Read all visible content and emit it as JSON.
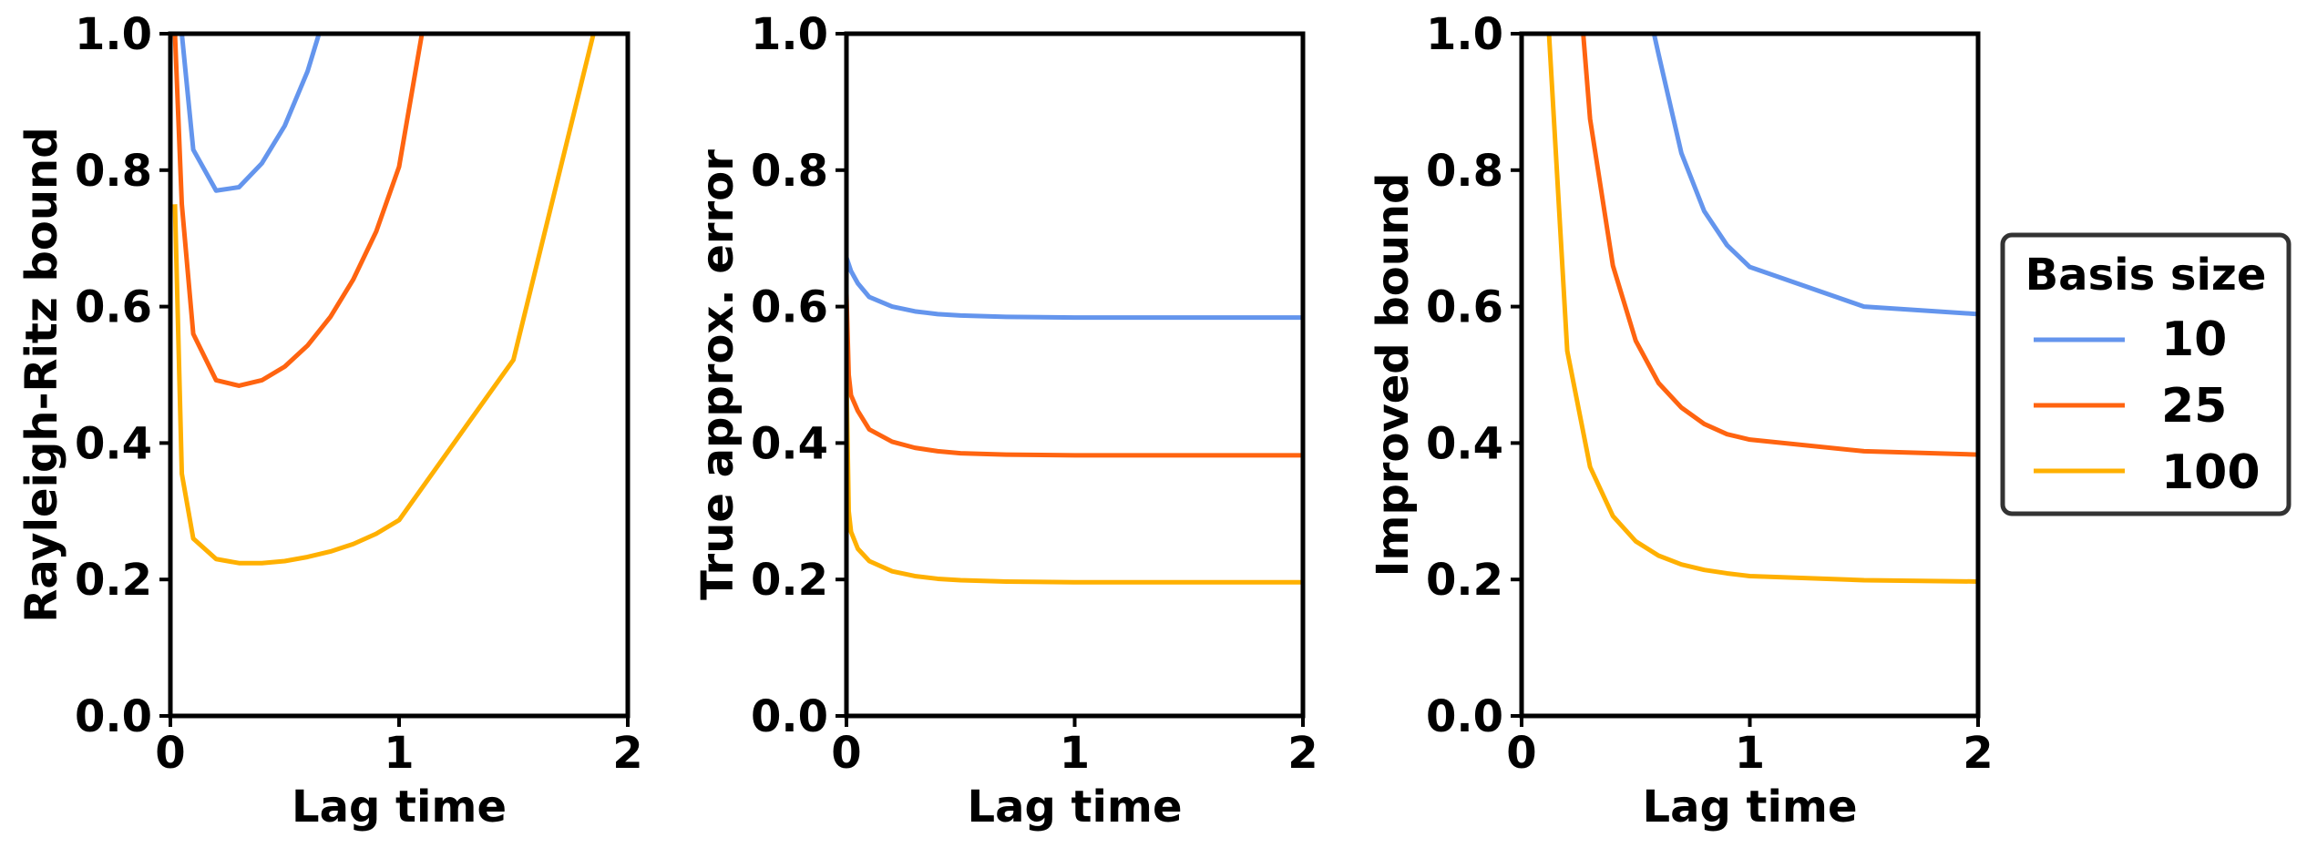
{
  "chart_data": [
    {
      "type": "line",
      "xlabel": "Lag time",
      "ylabel": "Rayleigh-Ritz bound",
      "xlim": [
        0,
        2
      ],
      "ylim": [
        0,
        1
      ],
      "xticks": [
        "0",
        "1",
        "2"
      ],
      "yticks": [
        "0.0",
        "0.2",
        "0.4",
        "0.6",
        "0.8",
        "1.0"
      ],
      "grid": false,
      "series": [
        {
          "name": "10",
          "x": [
            0.05,
            0.1,
            0.2,
            0.3,
            0.4,
            0.5,
            0.6,
            0.65
          ],
          "y": [
            1.0,
            0.83,
            0.77,
            0.775,
            0.81,
            0.865,
            0.945,
            1.0
          ]
        },
        {
          "name": "25",
          "x": [
            0.02,
            0.05,
            0.1,
            0.2,
            0.3,
            0.4,
            0.5,
            0.6,
            0.7,
            0.8,
            0.9,
            1.0,
            1.1
          ],
          "y": [
            1.0,
            0.75,
            0.56,
            0.492,
            0.484,
            0.492,
            0.512,
            0.543,
            0.585,
            0.64,
            0.71,
            0.805,
            1.0
          ]
        },
        {
          "name": "100",
          "x": [
            0.02,
            0.05,
            0.1,
            0.2,
            0.3,
            0.4,
            0.5,
            0.6,
            0.7,
            0.8,
            0.9,
            1.0,
            1.5,
            1.85
          ],
          "y": [
            0.75,
            0.355,
            0.26,
            0.23,
            0.224,
            0.224,
            0.227,
            0.233,
            0.241,
            0.252,
            0.267,
            0.287,
            0.522,
            1.0
          ]
        }
      ]
    },
    {
      "type": "line",
      "xlabel": "Lag time",
      "ylabel": "True approx. error",
      "xlim": [
        0,
        2
      ],
      "ylim": [
        0,
        1
      ],
      "xticks": [
        "0",
        "1",
        "2"
      ],
      "yticks": [
        "0.0",
        "0.2",
        "0.4",
        "0.6",
        "0.8",
        "1.0"
      ],
      "grid": false,
      "series": [
        {
          "name": "10",
          "x": [
            0.0,
            0.02,
            0.05,
            0.1,
            0.2,
            0.3,
            0.4,
            0.5,
            0.7,
            1.0,
            1.5,
            2.0
          ],
          "y": [
            0.672,
            0.652,
            0.634,
            0.614,
            0.6,
            0.593,
            0.589,
            0.587,
            0.585,
            0.584,
            0.584,
            0.584
          ]
        },
        {
          "name": "25",
          "x": [
            0.0,
            0.01,
            0.02,
            0.05,
            0.1,
            0.2,
            0.3,
            0.4,
            0.5,
            0.7,
            1.0,
            1.5,
            2.0
          ],
          "y": [
            0.62,
            0.5,
            0.47,
            0.447,
            0.42,
            0.402,
            0.393,
            0.388,
            0.385,
            0.383,
            0.382,
            0.382,
            0.382
          ]
        },
        {
          "name": "100",
          "x": [
            0.0,
            0.01,
            0.02,
            0.05,
            0.1,
            0.2,
            0.3,
            0.4,
            0.5,
            0.7,
            1.0,
            1.5,
            2.0
          ],
          "y": [
            0.5,
            0.3,
            0.27,
            0.245,
            0.227,
            0.212,
            0.205,
            0.201,
            0.199,
            0.197,
            0.196,
            0.196,
            0.196
          ]
        }
      ]
    },
    {
      "type": "line",
      "xlabel": "Lag time",
      "ylabel": "Improved bound",
      "xlim": [
        0,
        2
      ],
      "ylim": [
        0,
        1
      ],
      "xticks": [
        "0",
        "1",
        "2"
      ],
      "yticks": [
        "0.0",
        "0.2",
        "0.4",
        "0.6",
        "0.8",
        "1.0"
      ],
      "grid": false,
      "series": [
        {
          "name": "10",
          "x": [
            0.58,
            0.6,
            0.7,
            0.8,
            0.9,
            1.0,
            1.5,
            2.0
          ],
          "y": [
            1.0,
            0.97,
            0.825,
            0.74,
            0.69,
            0.658,
            0.6,
            0.589
          ]
        },
        {
          "name": "25",
          "x": [
            0.27,
            0.3,
            0.4,
            0.5,
            0.6,
            0.7,
            0.8,
            0.9,
            1.0,
            1.5,
            2.0
          ],
          "y": [
            1.0,
            0.875,
            0.66,
            0.55,
            0.488,
            0.452,
            0.428,
            0.413,
            0.405,
            0.388,
            0.383
          ]
        },
        {
          "name": "100",
          "x": [
            0.12,
            0.2,
            0.3,
            0.4,
            0.5,
            0.6,
            0.7,
            0.8,
            0.9,
            1.0,
            1.5,
            2.0
          ],
          "y": [
            1.0,
            0.535,
            0.365,
            0.293,
            0.256,
            0.235,
            0.222,
            0.214,
            0.209,
            0.205,
            0.199,
            0.197
          ]
        }
      ]
    }
  ],
  "legend": {
    "title": "Basis size",
    "placement": "right",
    "items": [
      {
        "label": "10",
        "color": "#6495ED"
      },
      {
        "label": "25",
        "color": "#FF6410"
      },
      {
        "label": "100",
        "color": "#FFB000"
      }
    ]
  },
  "colors": {
    "series_10": "#6495ED",
    "series_25": "#FF6410",
    "series_100": "#FFB000",
    "axis": "#000000"
  }
}
